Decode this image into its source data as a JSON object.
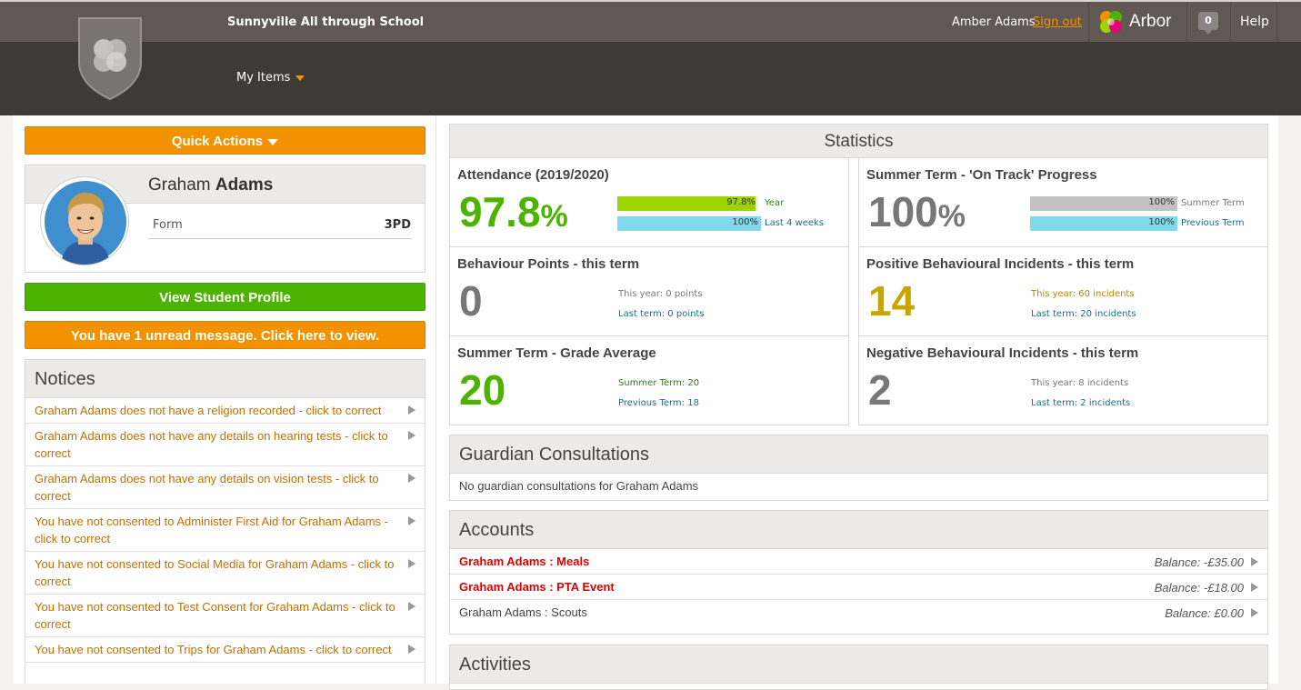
{
  "header": {
    "school_name": "Sunnyville All through School",
    "menu_label": "My Items",
    "user_name": "Amber Adams",
    "sign_out": "Sign out",
    "brand": "Arbor",
    "message_count": "0",
    "help": "Help"
  },
  "left": {
    "quick_actions": "Quick Actions",
    "student": {
      "first": "Graham",
      "last": "Adams"
    },
    "form_label": "Form",
    "form_value": "3PD",
    "view_profile": "View Student Profile",
    "unread": "You have 1 unread message. Click here to view.",
    "notices_title": "Notices",
    "notices": [
      "Graham Adams does not have a religion recorded - click to correct",
      "Graham Adams does not have any details on hearing tests - click to correct",
      "Graham Adams does not have any details on vision tests - click to correct",
      "You have not consented to Administer First Aid for Graham Adams - click to correct",
      "You have not consented to Social Media for Graham Adams - click to correct",
      "You have not consented to Test Consent for Graham Adams - click to correct",
      "You have not consented to Trips for Graham Adams - click to correct"
    ]
  },
  "stats": {
    "title": "Statistics",
    "attendance": {
      "title": "Attendance (2019/2020)",
      "value": "97.8",
      "unit": "%",
      "bars": [
        {
          "value_text": "97.8%",
          "fraction": 0.978,
          "label": "Year",
          "color": "#9cd300",
          "label_color": "#2e7d14"
        },
        {
          "value_text": "100%",
          "fraction": 1.0,
          "label": "Last 4 weeks",
          "color": "#7fd8eb",
          "label_color": "#1a6f8a"
        }
      ]
    },
    "progress": {
      "title": "Summer Term - 'On Track' Progress",
      "value": "100",
      "unit": "%",
      "bars": [
        {
          "value_text": "100%",
          "fraction": 1.0,
          "label": "Summer Term",
          "color": "#c2c2c2",
          "label_color": "#777777"
        },
        {
          "value_text": "100%",
          "fraction": 1.0,
          "label": "Previous Term",
          "color": "#7fd8eb",
          "label_color": "#1a6f8a"
        }
      ]
    },
    "behaviour": {
      "title": "Behaviour Points - this term",
      "value": "0",
      "line1": "This year: 0 points",
      "line2": "Last term: 0 points"
    },
    "positive": {
      "title": "Positive Behavioural Incidents - this term",
      "value": "14",
      "line1": "This year: 60 incidents",
      "line2": "Last term: 20 incidents"
    },
    "grade": {
      "title": "Summer Term - Grade Average",
      "value": "20",
      "line1": "Summer Term: 20",
      "line2": "Previous Term: 18"
    },
    "negative": {
      "title": "Negative Behavioural Incidents - this term",
      "value": "2",
      "line1": "This year: 8 incidents",
      "line2": "Last term: 2 incidents"
    }
  },
  "guardian": {
    "title": "Guardian Consultations",
    "empty": "No guardian consultations for Graham Adams"
  },
  "accounts": {
    "title": "Accounts",
    "items": [
      {
        "name": "Graham Adams : Meals",
        "balance": "Balance: -£35.00"
      },
      {
        "name": "Graham Adams : PTA Event",
        "balance": "Balance: -£18.00"
      },
      {
        "name": "Graham Adams : Scouts",
        "balance": "Balance: £0.00"
      }
    ]
  },
  "activities": {
    "title": "Activities"
  }
}
